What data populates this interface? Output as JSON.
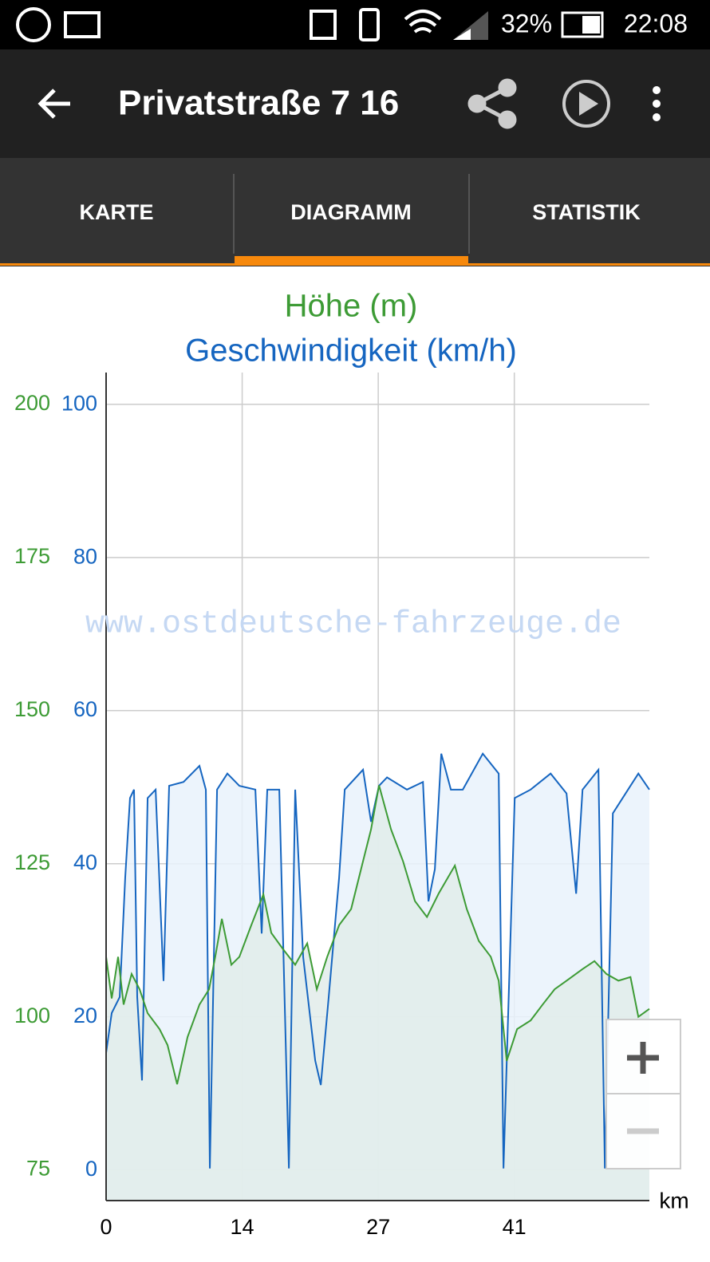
{
  "status_bar": {
    "battery": "32%",
    "time": "22:08"
  },
  "toolbar": {
    "title": "Privatstraße 7 16"
  },
  "tabs": [
    "KARTE",
    "DIAGRAMM",
    "STATISTIK"
  ],
  "chart_data": {
    "type": "area",
    "title": "Höhe (m)",
    "subtitle": "Geschwindigkeit (km/h)",
    "annotation": "www.ostdeutsche-fahrzeuge.de",
    "xlabel": "km",
    "xlim": [
      0,
      54.3
    ],
    "xticks": [
      0,
      {
        "value": 13.6,
        "label": "14"
      },
      {
        "value": 27.2,
        "label": "27"
      },
      {
        "value": 40.8,
        "label": "41"
      }
    ],
    "ylim": [
      70,
      205.2
    ],
    "yticks": [
      75,
      100,
      125,
      150,
      175,
      200
    ],
    "y2lim": [
      -4,
      104.2
    ],
    "y2ticks": [
      0,
      20,
      40,
      60,
      80,
      100
    ],
    "grid": true,
    "series": [
      {
        "name": "Höhe (m)",
        "color": "#3d9b35",
        "x": [
          0,
          0.56,
          1.2,
          1.75,
          2.55,
          3.35,
          4.15,
          5.34,
          6.14,
          7.1,
          8.14,
          9.33,
          10.29,
          10.93,
          11.57,
          12.52,
          13.32,
          14.52,
          15.72,
          16.51,
          17.71,
          18.9,
          20.1,
          21.06,
          22.1,
          23.3,
          24.49,
          25.68,
          26.48,
          27.28,
          28.48,
          29.68,
          30.87,
          32.07,
          33.26,
          34.86,
          36.05,
          37.25,
          38.45,
          39.24,
          40.04,
          41.08,
          42.43,
          43.63,
          44.83,
          46.02,
          47.62,
          48.81,
          50.01,
          51.21,
          52.41,
          53.2,
          54.3
        ],
        "values": [
          109.8,
          103,
          109.8,
          102,
          107,
          104.5,
          100.6,
          98,
          95.4,
          89,
          96.7,
          102,
          104.5,
          110,
          116,
          108.5,
          109.8,
          115,
          120,
          113.7,
          111,
          108.5,
          112,
          104.5,
          109.8,
          115,
          117.6,
          125.4,
          130.6,
          137.8,
          130.6,
          125.4,
          118.9,
          116.3,
          120.2,
          124.7,
          117.6,
          112.4,
          109.8,
          105.9,
          92.8,
          98,
          99.4,
          102,
          104.5,
          105.9,
          107.8,
          109.1,
          107,
          105.9,
          106.5,
          100,
          101.3
        ]
      },
      {
        "name": "Geschwindigkeit (km/h)",
        "color": "#1565c0",
        "axis": "y2",
        "x": [
          0,
          0.56,
          1.36,
          1.91,
          2.39,
          2.79,
          3.11,
          3.59,
          4.15,
          4.95,
          5.74,
          6.3,
          7.74,
          9.33,
          9.97,
          10.37,
          11.09,
          12.12,
          13.32,
          14.92,
          15.55,
          16.11,
          17.31,
          18.27,
          18.9,
          19.7,
          20.9,
          21.46,
          22.25,
          23.29,
          23.85,
          25.68,
          26.48,
          27.28,
          28.08,
          30.07,
          31.67,
          32.22,
          32.86,
          33.5,
          34.46,
          35.65,
          37.65,
          39.24,
          39.72,
          40.84,
          42.43,
          44.43,
          46.02,
          46.98,
          47.62,
          49.21,
          49.85,
          50.65,
          52.41,
          53.2,
          54.3
        ],
        "values": [
          15.3,
          20.5,
          22.6,
          38.2,
          48.6,
          49.7,
          22.6,
          11.7,
          48.6,
          49.7,
          24.7,
          50.2,
          50.7,
          52.8,
          49.7,
          0.2,
          49.7,
          51.8,
          50.2,
          49.7,
          30.9,
          49.7,
          49.7,
          0.2,
          49.7,
          27.8,
          14.3,
          11.1,
          22.6,
          38.2,
          49.7,
          52.3,
          45.5,
          50.2,
          51.3,
          49.7,
          50.7,
          35.1,
          39.3,
          54.4,
          49.7,
          49.7,
          54.4,
          51.8,
          0.2,
          48.6,
          49.7,
          51.8,
          49.2,
          36.1,
          49.7,
          52.3,
          0.2,
          46.6,
          50.2,
          51.8,
          49.7
        ]
      }
    ]
  }
}
